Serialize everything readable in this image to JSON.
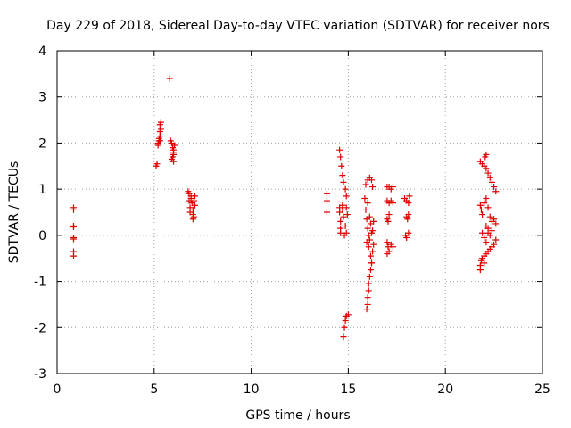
{
  "chart_data": {
    "type": "scatter",
    "title": "Day 229 of 2018, Sidereal Day-to-day VTEC variation (SDTVAR) for receiver nors",
    "xlabel": "GPS time / hours",
    "ylabel": "SDTVAR / TECUs",
    "xlim": [
      0,
      25
    ],
    "ylim": [
      -3,
      4
    ],
    "xticks": [
      0,
      5,
      10,
      15,
      20,
      25
    ],
    "yticks": [
      -3,
      -2,
      -1,
      0,
      1,
      2,
      3,
      4
    ],
    "grid": true,
    "marker": "+",
    "marker_color": "#e00000",
    "series": [
      {
        "name": "SDTVAR",
        "points": [
          [
            0.85,
            0.6
          ],
          [
            0.85,
            0.55
          ],
          [
            0.85,
            0.2
          ],
          [
            0.85,
            0.18
          ],
          [
            0.85,
            -0.05
          ],
          [
            0.85,
            -0.08
          ],
          [
            0.85,
            -0.35
          ],
          [
            0.85,
            -0.45
          ],
          [
            5.1,
            1.5
          ],
          [
            5.15,
            1.55
          ],
          [
            5.2,
            1.95
          ],
          [
            5.2,
            2.0
          ],
          [
            5.25,
            2.05
          ],
          [
            5.25,
            2.1
          ],
          [
            5.3,
            2.15
          ],
          [
            5.3,
            2.25
          ],
          [
            5.35,
            2.3
          ],
          [
            5.3,
            2.4
          ],
          [
            5.35,
            2.45
          ],
          [
            5.3,
            2.05
          ],
          [
            5.8,
            3.4
          ],
          [
            5.85,
            2.05
          ],
          [
            5.9,
            2.0
          ],
          [
            5.95,
            1.9
          ],
          [
            6.0,
            1.85
          ],
          [
            6.0,
            1.8
          ],
          [
            6.0,
            1.75
          ],
          [
            5.95,
            1.7
          ],
          [
            5.9,
            1.65
          ],
          [
            6.0,
            1.6
          ],
          [
            6.05,
            1.95
          ],
          [
            6.75,
            0.95
          ],
          [
            6.8,
            0.9
          ],
          [
            6.8,
            0.75
          ],
          [
            6.85,
            0.6
          ],
          [
            6.85,
            0.5
          ],
          [
            6.9,
            0.8
          ],
          [
            6.95,
            0.7
          ],
          [
            7.0,
            0.55
          ],
          [
            7.0,
            0.45
          ],
          [
            7.05,
            0.4
          ],
          [
            7.1,
            0.85
          ],
          [
            7.1,
            0.65
          ],
          [
            7.0,
            0.35
          ],
          [
            6.9,
            0.85
          ],
          [
            7.05,
            0.75
          ],
          [
            13.9,
            0.9
          ],
          [
            13.9,
            0.75
          ],
          [
            13.9,
            0.5
          ],
          [
            14.55,
            1.85
          ],
          [
            14.6,
            1.7
          ],
          [
            14.65,
            1.5
          ],
          [
            14.7,
            1.3
          ],
          [
            14.75,
            1.15
          ],
          [
            14.85,
            1.0
          ],
          [
            14.9,
            0.85
          ],
          [
            14.55,
            0.6
          ],
          [
            14.55,
            0.5
          ],
          [
            14.6,
            0.3
          ],
          [
            14.6,
            0.15
          ],
          [
            14.6,
            0.05
          ],
          [
            14.7,
            0.55
          ],
          [
            14.75,
            0.4
          ],
          [
            14.85,
            0.2
          ],
          [
            14.9,
            0.6
          ],
          [
            14.95,
            0.45
          ],
          [
            14.9,
            0.05
          ],
          [
            14.8,
            -0.0
          ],
          [
            14.7,
            0.65
          ],
          [
            14.75,
            -2.2
          ],
          [
            14.8,
            -2.0
          ],
          [
            14.85,
            -1.85
          ],
          [
            14.9,
            -1.75
          ],
          [
            15.0,
            -1.72
          ],
          [
            15.9,
            1.1
          ],
          [
            16.0,
            1.2
          ],
          [
            16.1,
            1.25
          ],
          [
            16.2,
            1.2
          ],
          [
            16.25,
            1.05
          ],
          [
            15.85,
            0.8
          ],
          [
            15.9,
            0.55
          ],
          [
            15.95,
            0.35
          ],
          [
            16.0,
            0.15
          ],
          [
            16.05,
            0.0
          ],
          [
            16.1,
            -0.1
          ],
          [
            16.0,
            0.7
          ],
          [
            16.1,
            0.4
          ],
          [
            16.15,
            0.25
          ],
          [
            16.2,
            0.05
          ],
          [
            16.25,
            0.1
          ],
          [
            16.3,
            0.3
          ],
          [
            15.95,
            -0.15
          ],
          [
            16.05,
            -0.25
          ],
          [
            16.15,
            -0.45
          ],
          [
            16.2,
            -0.6
          ],
          [
            16.25,
            -0.35
          ],
          [
            16.3,
            -0.2
          ],
          [
            15.95,
            -1.6
          ],
          [
            16.0,
            -1.5
          ],
          [
            16.0,
            -1.35
          ],
          [
            16.05,
            -1.2
          ],
          [
            16.05,
            -1.05
          ],
          [
            16.1,
            -0.9
          ],
          [
            16.15,
            -0.75
          ],
          [
            16.2,
            -0.6
          ],
          [
            17.0,
            1.05
          ],
          [
            17.1,
            1.05
          ],
          [
            17.2,
            1.0
          ],
          [
            17.3,
            1.05
          ],
          [
            17.0,
            0.75
          ],
          [
            17.1,
            0.7
          ],
          [
            17.2,
            0.75
          ],
          [
            17.3,
            0.7
          ],
          [
            17.0,
            0.35
          ],
          [
            17.05,
            0.3
          ],
          [
            17.1,
            0.45
          ],
          [
            17.0,
            -0.15
          ],
          [
            17.05,
            -0.25
          ],
          [
            17.1,
            -0.35
          ],
          [
            17.2,
            -0.2
          ],
          [
            17.3,
            -0.25
          ],
          [
            17.0,
            -0.4
          ],
          [
            17.9,
            0.8
          ],
          [
            18.0,
            0.75
          ],
          [
            18.1,
            0.7
          ],
          [
            18.15,
            0.85
          ],
          [
            18.0,
            0.4
          ],
          [
            18.05,
            0.35
          ],
          [
            18.1,
            0.45
          ],
          [
            17.95,
            -0.0
          ],
          [
            18.0,
            -0.05
          ],
          [
            18.1,
            0.05
          ],
          [
            21.8,
            1.6
          ],
          [
            21.9,
            1.55
          ],
          [
            22.0,
            1.5
          ],
          [
            22.1,
            1.45
          ],
          [
            22.2,
            1.35
          ],
          [
            22.3,
            1.25
          ],
          [
            22.4,
            1.15
          ],
          [
            22.5,
            1.05
          ],
          [
            22.6,
            0.95
          ],
          [
            22.05,
            1.7
          ],
          [
            22.1,
            1.75
          ],
          [
            21.8,
            0.65
          ],
          [
            21.85,
            0.55
          ],
          [
            21.9,
            0.45
          ],
          [
            22.0,
            0.7
          ],
          [
            22.1,
            0.8
          ],
          [
            22.2,
            0.6
          ],
          [
            22.3,
            0.4
          ],
          [
            22.4,
            0.3
          ],
          [
            22.5,
            0.35
          ],
          [
            22.6,
            0.25
          ],
          [
            22.1,
            0.2
          ],
          [
            22.2,
            0.15
          ],
          [
            21.9,
            0.05
          ],
          [
            22.0,
            -0.05
          ],
          [
            22.1,
            -0.15
          ],
          [
            22.2,
            0.05
          ],
          [
            22.3,
            0.0
          ],
          [
            22.4,
            0.1
          ],
          [
            21.8,
            -0.65
          ],
          [
            21.85,
            -0.55
          ],
          [
            21.9,
            -0.5
          ],
          [
            22.0,
            -0.45
          ],
          [
            22.1,
            -0.4
          ],
          [
            22.2,
            -0.35
          ],
          [
            22.3,
            -0.3
          ],
          [
            22.4,
            -0.25
          ],
          [
            22.5,
            -0.2
          ],
          [
            22.6,
            -0.1
          ],
          [
            21.8,
            -0.75
          ],
          [
            22.0,
            -0.6
          ]
        ]
      }
    ]
  }
}
